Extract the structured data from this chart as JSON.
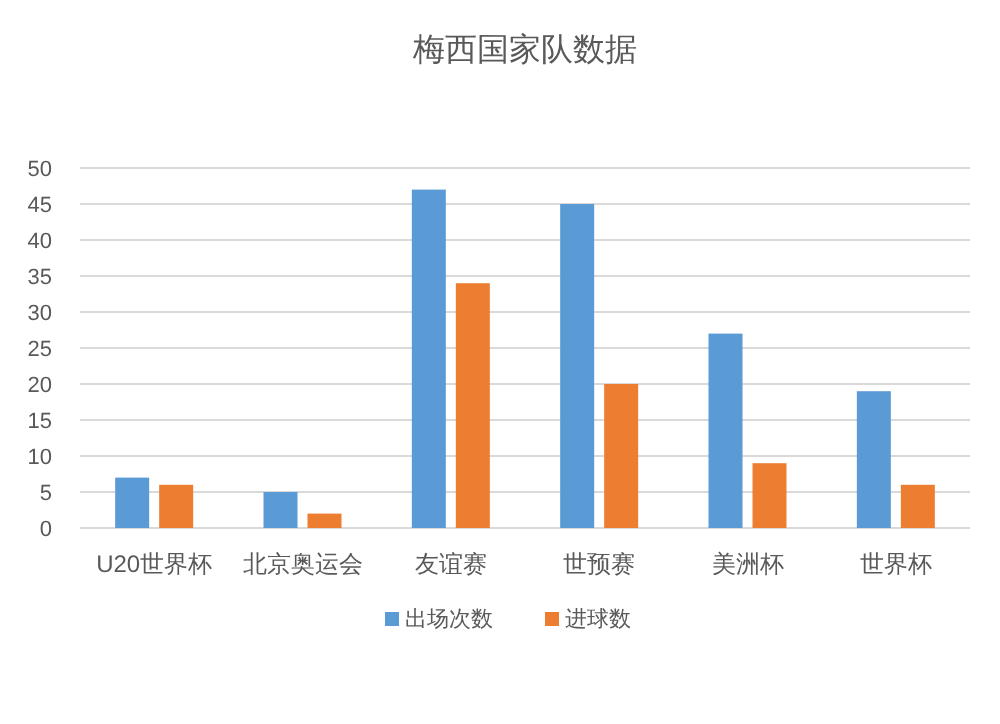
{
  "chart_data": {
    "type": "bar",
    "title": "梅西国家队数据",
    "categories": [
      "U20世界杯",
      "北京奥运会",
      "友谊赛",
      "世预赛",
      "美洲杯",
      "世界杯"
    ],
    "series": [
      {
        "name": "出场次数",
        "color": "#5b9bd5",
        "values": [
          7,
          5,
          47,
          45,
          27,
          19
        ]
      },
      {
        "name": "进球数",
        "color": "#ed7d31",
        "values": [
          6,
          2,
          34,
          20,
          9,
          6
        ]
      }
    ],
    "ylim": [
      0,
      50
    ],
    "yticks": [
      0,
      5,
      10,
      15,
      20,
      25,
      30,
      35,
      40,
      45,
      50
    ],
    "grid": "y",
    "legend": "bottom"
  }
}
